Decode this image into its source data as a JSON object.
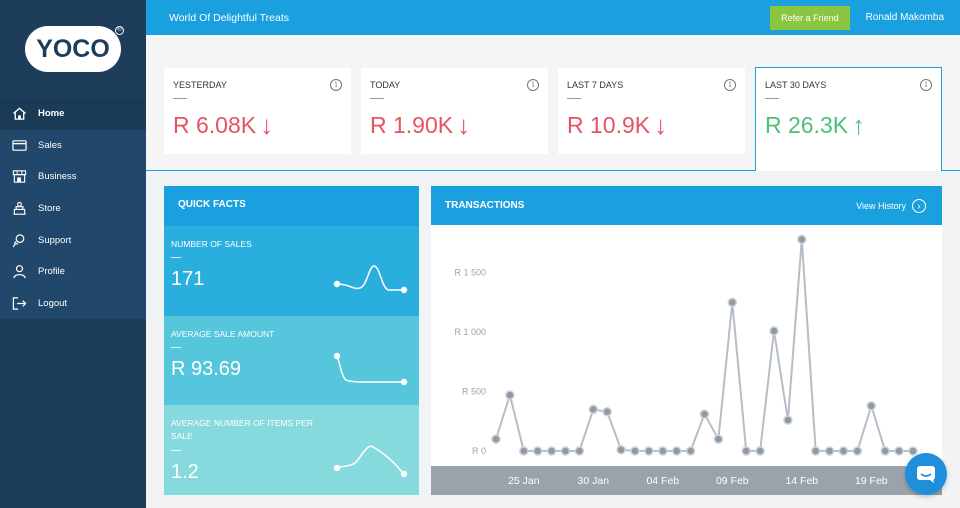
{
  "logo": {
    "text": "YOCO",
    "reg": "®"
  },
  "nav": [
    {
      "label": "Home",
      "icon": "home-icon",
      "active": true
    },
    {
      "label": "Sales",
      "icon": "card-icon"
    },
    {
      "label": "Business",
      "icon": "shop-icon"
    },
    {
      "label": "Store",
      "icon": "store-icon"
    },
    {
      "label": "Support",
      "icon": "support-icon"
    },
    {
      "label": "Profile",
      "icon": "user-icon"
    },
    {
      "label": "Logout",
      "icon": "logout-icon"
    }
  ],
  "topbar": {
    "shop_name": "World Of Delightful Treats",
    "refer_label": "Refer a Friend",
    "user_name": "Ronald Makomba"
  },
  "stats": [
    {
      "label": "YESTERDAY",
      "value": "R 6.08K",
      "trend": "down"
    },
    {
      "label": "TODAY",
      "value": "R 1.90K",
      "trend": "down"
    },
    {
      "label": "LAST 7 DAYS",
      "value": "R 10.9K",
      "trend": "down"
    },
    {
      "label": "LAST 30 DAYS",
      "value": "R 26.3K",
      "trend": "up",
      "selected": true
    }
  ],
  "arrows": {
    "down": "↓",
    "up": "↑"
  },
  "info_glyph": "i",
  "quick_facts": {
    "title": "QUICK FACTS",
    "items": [
      {
        "label": "NUMBER OF SALES",
        "value": "171"
      },
      {
        "label": "AVERAGE SALE AMOUNT",
        "value": "R 93.69"
      },
      {
        "label": "AVERAGE NUMBER OF ITEMS PER SALE",
        "value": "1.2"
      }
    ]
  },
  "transactions": {
    "title": "TRANSACTIONS",
    "view_history": "View History",
    "vh_glyph": "›"
  },
  "colors": {
    "accent": "#1aa0df",
    "down": "#e45462",
    "up": "#4cc07a",
    "refer": "#8ac640"
  },
  "chart_data": {
    "type": "line",
    "y_ticks": [
      0,
      500,
      1000,
      1500
    ],
    "y_tick_labels": [
      "R 0",
      "R 500",
      "R 1 000",
      "R 1 500"
    ],
    "ylim": [
      0,
      1800
    ],
    "x_tick_labels": [
      "25 Jan",
      "30 Jan",
      "04 Feb",
      "09 Feb",
      "14 Feb",
      "19 Feb"
    ],
    "x_tick_index": [
      2,
      7,
      12,
      17,
      22,
      27
    ],
    "values": [
      100,
      470,
      0,
      0,
      0,
      0,
      0,
      350,
      330,
      10,
      0,
      0,
      0,
      0,
      0,
      310,
      100,
      1250,
      0,
      0,
      1010,
      260,
      1780,
      0,
      0,
      0,
      0,
      380,
      0,
      0,
      0
    ],
    "grid": false,
    "legend": "none"
  }
}
